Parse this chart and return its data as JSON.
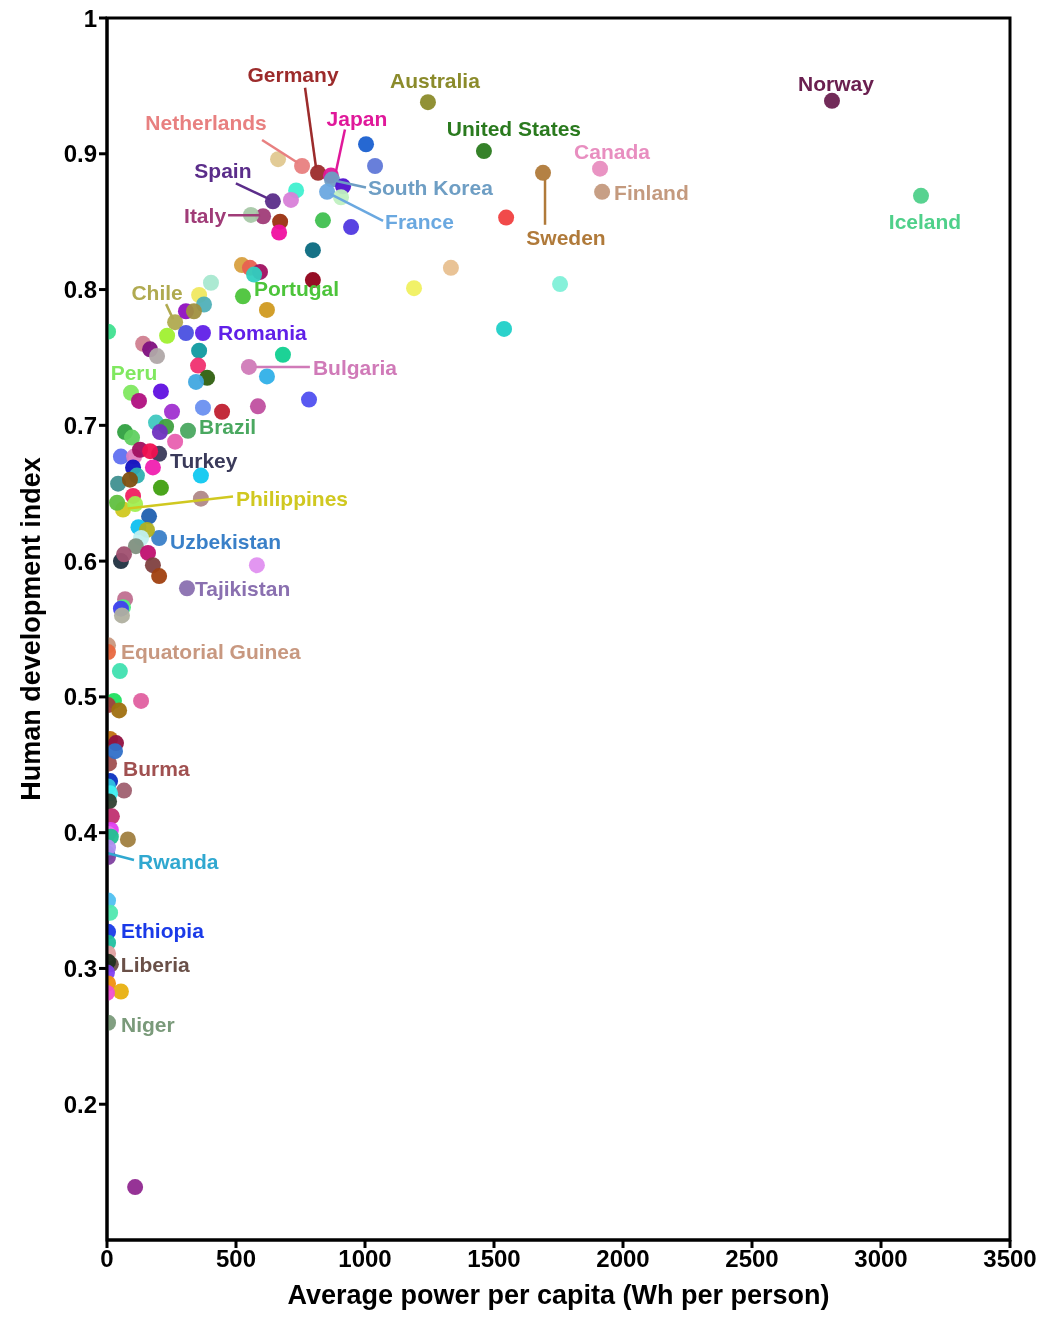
{
  "chart_data": {
    "type": "scatter",
    "xlabel": "Average power per capita (Wh per person)",
    "ylabel": "Human development index",
    "xlim": [
      0,
      3500
    ],
    "xticks": [
      0,
      500,
      1000,
      1500,
      2000,
      2500,
      3000,
      3500
    ],
    "ylim": [
      0.1,
      1
    ],
    "yticks": [
      0.2,
      0.3,
      0.4,
      0.5,
      0.6,
      0.7,
      0.8,
      0.9,
      1
    ],
    "grid": false,
    "legend": false,
    "marker": "circle",
    "x": [
      2810,
      3155,
      1244,
      1461,
      1911,
      1919,
      1690,
      818,
      868,
      756,
      872,
      853,
      643,
      605,
      527,
      264,
      372,
      550,
      93,
      314,
      202,
      62,
      202,
      310,
      4,
      8,
      0,
      4,
      15,
      4,
      1004,
      1039,
      663,
      733,
      713,
      915,
      907,
      558,
      671,
      667,
      837,
      946,
      798,
      798,
      1547,
      1333,
      1190,
      1756,
      1539,
      523,
      554,
      593,
      570,
      403,
      357,
      376,
      620,
      306,
      337,
      306,
      233,
      4,
      140,
      167,
      194,
      357,
      682,
      353,
      388,
      345,
      620,
      209,
      783,
      124,
      252,
      372,
      446,
      585,
      190,
      229,
      205,
      70,
      97,
      264,
      54,
      105,
      128,
      167,
      101,
      178,
      116,
      364,
      43,
      89,
      209,
      101,
      364,
      39,
      109,
      163,
      122,
      155,
      132,
      112,
      159,
      178,
      202,
      581,
      54,
      66,
      70,
      62,
      54,
      58,
      4,
      50,
      132,
      27,
      4,
      47,
      12,
      35,
      31,
      12,
      66,
      4,
      12,
      8,
      19,
      15,
      4,
      15,
      81,
      4,
      4,
      4,
      12,
      4,
      4,
      4,
      0,
      4,
      54,
      0,
      109
    ],
    "values": [
      0.939,
      0.869,
      0.938,
      0.902,
      0.889,
      0.872,
      0.886,
      0.886,
      0.884,
      0.891,
      0.881,
      0.872,
      0.865,
      0.854,
      0.795,
      0.776,
      0.768,
      0.743,
      0.724,
      0.696,
      0.679,
      0.638,
      0.617,
      0.58,
      0.538,
      0.451,
      0.385,
      0.327,
      0.303,
      0.26,
      0.907,
      0.891,
      0.896,
      0.873,
      0.866,
      0.876,
      0.868,
      0.855,
      0.85,
      0.842,
      0.851,
      0.846,
      0.829,
      0.807,
      0.853,
      0.816,
      0.801,
      0.804,
      0.771,
      0.818,
      0.816,
      0.813,
      0.811,
      0.805,
      0.796,
      0.789,
      0.785,
      0.784,
      0.784,
      0.768,
      0.766,
      0.769,
      0.76,
      0.756,
      0.751,
      0.755,
      0.752,
      0.744,
      0.735,
      0.732,
      0.736,
      0.725,
      0.719,
      0.718,
      0.71,
      0.713,
      0.71,
      0.714,
      0.702,
      0.699,
      0.695,
      0.695,
      0.691,
      0.688,
      0.677,
      0.677,
      0.682,
      0.681,
      0.669,
      0.669,
      0.663,
      0.663,
      0.657,
      0.66,
      0.654,
      0.648,
      0.646,
      0.643,
      0.642,
      0.633,
      0.625,
      0.623,
      0.617,
      0.611,
      0.606,
      0.597,
      0.589,
      0.597,
      0.6,
      0.605,
      0.572,
      0.566,
      0.565,
      0.56,
      0.533,
      0.519,
      0.497,
      0.497,
      0.494,
      0.49,
      0.469,
      0.466,
      0.46,
      0.438,
      0.431,
      0.434,
      0.429,
      0.423,
      0.412,
      0.402,
      0.399,
      0.397,
      0.395,
      0.382,
      0.389,
      0.35,
      0.341,
      0.319,
      0.311,
      0.305,
      0.297,
      0.289,
      0.283,
      0.282,
      0.139
    ],
    "colors": [
      "#6a2050",
      "#4fd08a",
      "#8b8b2b",
      "#2a7a1e",
      "#e88ec0",
      "#c49a7e",
      "#b07a3a",
      "#9c2b2b",
      "#e0189a",
      "#e88080",
      "#6e9ec4",
      "#6aa8e0",
      "#5b2d8a",
      "#a03c78",
      "#4cc43a",
      "#b0aa50",
      "#6020e8",
      "#d07ab8",
      "#80e860",
      "#4aa860",
      "#3a3a5a",
      "#d0c820",
      "#3a80c8",
      "#8a70b0",
      "#c89880",
      "#a05050",
      "#30a8d0",
      "#1a3ae8",
      "#6a5048",
      "#7a9a7a",
      "#1a60d0",
      "#6078d8",
      "#e0c890",
      "#40f0d0",
      "#d880d8",
      "#5010d0",
      "#c0f0c0",
      "#a8c8a8",
      "#9a3010",
      "#f010a0",
      "#40c050",
      "#5038e0",
      "#0a6a80",
      "#900018",
      "#f04040",
      "#e8c090",
      "#f0f060",
      "#80f0d8",
      "#20d0c8",
      "#d8a040",
      "#e86050",
      "#a01060",
      "#30d0c0",
      "#a8e8d0",
      "#f0e860",
      "#50b0b8",
      "#d09a20",
      "#9010c0",
      "#a09040",
      "#4a50e0",
      "#a0f030",
      "#40e090",
      "#d08090",
      "#801080",
      "#b0a8a8",
      "#109aa0",
      "#10d090",
      "#f03070",
      "#306010",
      "#40a8e0",
      "#30b0e8",
      "#6010e0",
      "#5050f0",
      "#b01080",
      "#a030d0",
      "#6a90f0",
      "#c02030",
      "#c050a0",
      "#40c8c0",
      "#40a040",
      "#7030c0",
      "#30a040",
      "#60d060",
      "#e860b0",
      "#6070f0",
      "#e080c0",
      "#a01060",
      "#f01050",
      "#1010c0",
      "#f020b0",
      "#30b0b0",
      "#10c8f0",
      "#409090",
      "#805010",
      "#40a010",
      "#f02060",
      "#b08888",
      "#60c040",
      "#a0f050",
      "#2060b0",
      "#10c0f0",
      "#b0b020",
      "#c0f0f0",
      "#809080",
      "#c01070",
      "#804040",
      "#a04010",
      "#e090f0",
      "#203040",
      "#a05070",
      "#c07090",
      "#50f080",
      "#4040f0",
      "#b0b0a0",
      "#e86840",
      "#40e0b0",
      "#e060a0",
      "#20e060",
      "#a04040",
      "#a07010",
      "#c07010",
      "#901040",
      "#3070c8",
      "#0a30c0",
      "#a06070",
      "#30c0e0",
      "#40f0f0",
      "#304030",
      "#c03070",
      "#e040f0",
      "#f070f0",
      "#20c090",
      "#a08040",
      "#8040a0",
      "#b090f0",
      "#50c0f0",
      "#50e8b0",
      "#20c0a0",
      "#e0a0a0",
      "#203020",
      "#8040f0",
      "#f09010",
      "#e8b010",
      "#f050d0",
      "#902890"
    ],
    "annotations": [
      {
        "text": "Norway",
        "x": 2810,
        "y": 0.939
      },
      {
        "text": "Iceland",
        "x": 3155,
        "y": 0.869
      },
      {
        "text": "Australia",
        "x": 1244,
        "y": 0.938
      },
      {
        "text": "United States",
        "x": 1461,
        "y": 0.902
      },
      {
        "text": "Canada",
        "x": 1911,
        "y": 0.889
      },
      {
        "text": "Finland",
        "x": 1919,
        "y": 0.872
      },
      {
        "text": "Sweden",
        "x": 1690,
        "y": 0.886
      },
      {
        "text": "Germany",
        "x": 818,
        "y": 0.886
      },
      {
        "text": "Japan",
        "x": 868,
        "y": 0.884
      },
      {
        "text": "Netherlands",
        "x": 756,
        "y": 0.891
      },
      {
        "text": "South Korea",
        "x": 872,
        "y": 0.881
      },
      {
        "text": "France",
        "x": 853,
        "y": 0.872
      },
      {
        "text": "Spain",
        "x": 643,
        "y": 0.865
      },
      {
        "text": "Italy",
        "x": 605,
        "y": 0.854
      },
      {
        "text": "Portugal",
        "x": 527,
        "y": 0.795
      },
      {
        "text": "Chile",
        "x": 264,
        "y": 0.776
      },
      {
        "text": "Romania",
        "x": 372,
        "y": 0.768
      },
      {
        "text": "Bulgaria",
        "x": 550,
        "y": 0.743
      },
      {
        "text": "Peru",
        "x": 93,
        "y": 0.724
      },
      {
        "text": "Brazil",
        "x": 314,
        "y": 0.696
      },
      {
        "text": "Turkey",
        "x": 202,
        "y": 0.679
      },
      {
        "text": "Philippines",
        "x": 62,
        "y": 0.638
      },
      {
        "text": "Uzbekistan",
        "x": 202,
        "y": 0.617
      },
      {
        "text": "Tajikistan",
        "x": 310,
        "y": 0.58
      },
      {
        "text": "Equatorial Guinea",
        "x": 4,
        "y": 0.538
      },
      {
        "text": "Burma",
        "x": 8,
        "y": 0.451
      },
      {
        "text": "Rwanda",
        "x": 0,
        "y": 0.385
      },
      {
        "text": "Ethiopia",
        "x": 4,
        "y": 0.327
      },
      {
        "text": "Liberia",
        "x": 15,
        "y": 0.303
      },
      {
        "text": "Niger",
        "x": 4,
        "y": 0.26
      }
    ]
  }
}
